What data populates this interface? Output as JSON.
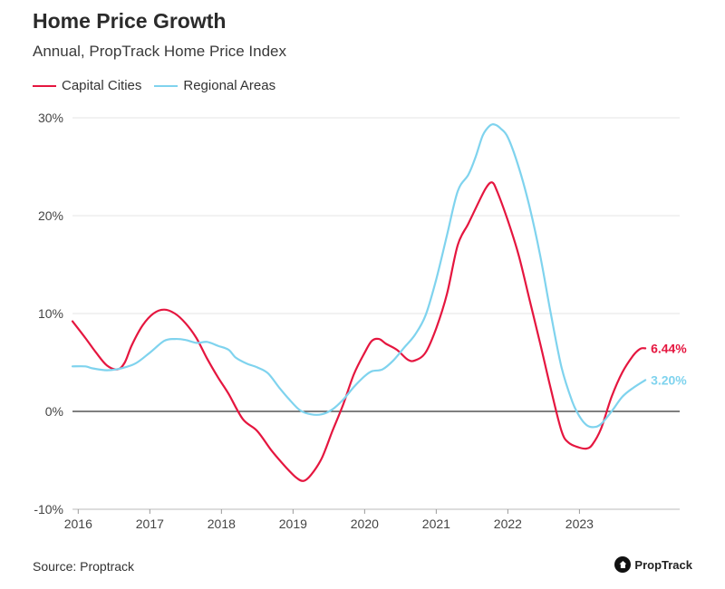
{
  "header": {
    "title": "Home Price Growth",
    "subtitle": "Annual, PropTrack Home Price Index"
  },
  "footer": {
    "source": "Source: Proptrack",
    "brand": "PropTrack"
  },
  "colors": {
    "capital": "#e5163f",
    "regional": "#7fd3ee",
    "zero_line": "#333333",
    "grid": "#e6e6e6"
  },
  "chart_data": {
    "type": "line",
    "title": "Home Price Growth",
    "subtitle": "Annual, PropTrack Home Price Index",
    "ylim": [
      -10,
      30
    ],
    "xlim": [
      2015.92,
      2024.4
    ],
    "y_ticks": [
      {
        "value": 30,
        "label": "30%"
      },
      {
        "value": 20,
        "label": "20%"
      },
      {
        "value": 10,
        "label": "10%"
      },
      {
        "value": 0,
        "label": "0%"
      },
      {
        "value": -10,
        "label": "-10%"
      }
    ],
    "x_ticks": [
      {
        "value": 2016,
        "label": "2016"
      },
      {
        "value": 2017,
        "label": "2017"
      },
      {
        "value": 2018,
        "label": "2018"
      },
      {
        "value": 2019,
        "label": "2019"
      },
      {
        "value": 2020,
        "label": "2020"
      },
      {
        "value": 2021,
        "label": "2021"
      },
      {
        "value": 2022,
        "label": "2022"
      },
      {
        "value": 2023,
        "label": "2023"
      }
    ],
    "grid": true,
    "legend_position": "top-left",
    "series": [
      {
        "name": "Capital Cities",
        "color": "#e5163f",
        "end_label": "6.44%",
        "points": [
          [
            2015.92,
            9.2
          ],
          [
            2016.1,
            7.5
          ],
          [
            2016.25,
            6.0
          ],
          [
            2016.4,
            4.7
          ],
          [
            2016.55,
            4.3
          ],
          [
            2016.65,
            5.0
          ],
          [
            2016.75,
            6.8
          ],
          [
            2016.9,
            8.8
          ],
          [
            2017.05,
            10.0
          ],
          [
            2017.2,
            10.4
          ],
          [
            2017.35,
            10.0
          ],
          [
            2017.5,
            9.0
          ],
          [
            2017.65,
            7.5
          ],
          [
            2017.8,
            5.4
          ],
          [
            2017.95,
            3.5
          ],
          [
            2018.1,
            1.8
          ],
          [
            2018.3,
            -0.8
          ],
          [
            2018.5,
            -2.0
          ],
          [
            2018.7,
            -4.0
          ],
          [
            2018.9,
            -5.7
          ],
          [
            2019.05,
            -6.8
          ],
          [
            2019.15,
            -7.1
          ],
          [
            2019.25,
            -6.5
          ],
          [
            2019.4,
            -4.8
          ],
          [
            2019.55,
            -2.0
          ],
          [
            2019.7,
            0.7
          ],
          [
            2019.85,
            3.8
          ],
          [
            2020.0,
            6.0
          ],
          [
            2020.1,
            7.2
          ],
          [
            2020.2,
            7.4
          ],
          [
            2020.3,
            6.9
          ],
          [
            2020.45,
            6.3
          ],
          [
            2020.6,
            5.3
          ],
          [
            2020.7,
            5.2
          ],
          [
            2020.85,
            6.0
          ],
          [
            2021.0,
            8.5
          ],
          [
            2021.15,
            12.0
          ],
          [
            2021.3,
            17.0
          ],
          [
            2021.45,
            19.2
          ],
          [
            2021.6,
            21.5
          ],
          [
            2021.7,
            22.9
          ],
          [
            2021.78,
            23.4
          ],
          [
            2021.85,
            22.5
          ],
          [
            2022.0,
            19.5
          ],
          [
            2022.15,
            16.0
          ],
          [
            2022.3,
            11.5
          ],
          [
            2022.45,
            7.0
          ],
          [
            2022.6,
            2.3
          ],
          [
            2022.75,
            -2.0
          ],
          [
            2022.85,
            -3.2
          ],
          [
            2023.0,
            -3.7
          ],
          [
            2023.1,
            -3.8
          ],
          [
            2023.18,
            -3.4
          ],
          [
            2023.3,
            -1.8
          ],
          [
            2023.45,
            1.5
          ],
          [
            2023.6,
            4.0
          ],
          [
            2023.75,
            5.7
          ],
          [
            2023.85,
            6.4
          ],
          [
            2023.92,
            6.44
          ]
        ]
      },
      {
        "name": "Regional Areas",
        "color": "#7fd3ee",
        "end_label": "3.20%",
        "points": [
          [
            2015.92,
            4.6
          ],
          [
            2016.1,
            4.6
          ],
          [
            2016.2,
            4.4
          ],
          [
            2016.4,
            4.2
          ],
          [
            2016.6,
            4.4
          ],
          [
            2016.8,
            4.9
          ],
          [
            2017.0,
            6.0
          ],
          [
            2017.2,
            7.2
          ],
          [
            2017.35,
            7.4
          ],
          [
            2017.5,
            7.3
          ],
          [
            2017.65,
            7.0
          ],
          [
            2017.8,
            7.1
          ],
          [
            2017.95,
            6.7
          ],
          [
            2018.1,
            6.3
          ],
          [
            2018.2,
            5.5
          ],
          [
            2018.35,
            4.9
          ],
          [
            2018.5,
            4.5
          ],
          [
            2018.65,
            3.9
          ],
          [
            2018.8,
            2.5
          ],
          [
            2018.95,
            1.2
          ],
          [
            2019.1,
            0.1
          ],
          [
            2019.25,
            -0.3
          ],
          [
            2019.4,
            -0.3
          ],
          [
            2019.55,
            0.2
          ],
          [
            2019.7,
            1.2
          ],
          [
            2019.85,
            2.5
          ],
          [
            2020.0,
            3.6
          ],
          [
            2020.1,
            4.1
          ],
          [
            2020.25,
            4.3
          ],
          [
            2020.4,
            5.2
          ],
          [
            2020.55,
            6.5
          ],
          [
            2020.7,
            7.8
          ],
          [
            2020.85,
            9.8
          ],
          [
            2021.0,
            13.5
          ],
          [
            2021.15,
            18.0
          ],
          [
            2021.3,
            22.5
          ],
          [
            2021.45,
            24.2
          ],
          [
            2021.55,
            26.0
          ],
          [
            2021.65,
            28.2
          ],
          [
            2021.75,
            29.2
          ],
          [
            2021.82,
            29.3
          ],
          [
            2021.9,
            28.9
          ],
          [
            2022.0,
            28.0
          ],
          [
            2022.15,
            25.0
          ],
          [
            2022.3,
            21.0
          ],
          [
            2022.45,
            16.0
          ],
          [
            2022.6,
            10.0
          ],
          [
            2022.75,
            4.5
          ],
          [
            2022.9,
            1.0
          ],
          [
            2023.0,
            -0.5
          ],
          [
            2023.1,
            -1.4
          ],
          [
            2023.2,
            -1.6
          ],
          [
            2023.3,
            -1.3
          ],
          [
            2023.45,
            0.0
          ],
          [
            2023.6,
            1.5
          ],
          [
            2023.75,
            2.4
          ],
          [
            2023.92,
            3.2
          ]
        ]
      }
    ]
  }
}
